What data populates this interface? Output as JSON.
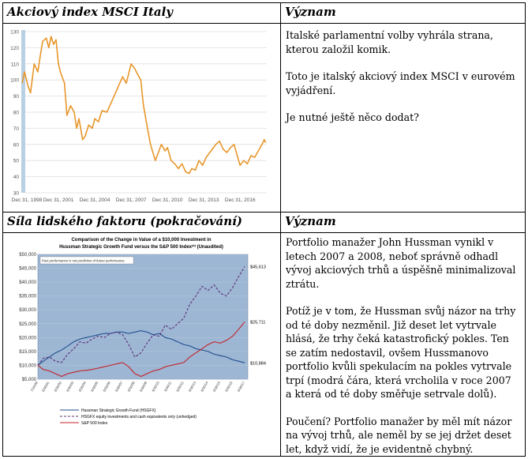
{
  "table": {
    "row1": {
      "left_header": "Akciový index MSCI Italy",
      "right_header": "Význam",
      "paragraphs": [
        "Italské parlamentní volby vyhrála strana, kterou založil komik.",
        "Toto je italský akciový index MSCI v eurovém vyjádření.",
        "Je nutné ještě něco dodat?"
      ]
    },
    "row2": {
      "left_header": "Síla lidského faktoru (pokračování)",
      "right_header": "Význam",
      "paragraphs": [
        "Portfolio manažer John Hussman vynikl v letech 2007 a 2008, neboť správně odhadl vývoj akciových trhů a úspěšně minimalizoval ztrátu.",
        "Potíž je v tom, že Hussman svůj názor na trhy od té doby nezměnil. Již deset let vytrvale hlásá, že trhy čeká katastrofický pokles. Ten se zatím nedostavil, ovšem Hussmanovo portfolio kvůli spekulacím na pokles vytrvale trpí (modrá čára, která vrcholila v roce 2007 a která od té doby směřuje setrvale dolů).",
        "Poučení? Portfolio manažer by měl mít názor na vývoj trhů, ale neměl by se jej držet deset let, když vidí, že je evidentně chybný."
      ]
    }
  },
  "chart_data": [
    {
      "type": "line",
      "title": "",
      "xlabel": "",
      "ylabel": "",
      "ylim": [
        30,
        130
      ],
      "yticks": [
        "130",
        "120",
        "110",
        "100",
        "90",
        "80",
        "70",
        "60",
        "50",
        "40",
        "30"
      ],
      "xticks": [
        "Dec 31, 1998",
        "Dec 31, 2001",
        "Dec 31, 2004",
        "Dec 31, 2007",
        "Dec 31, 2010",
        "Dec 31, 2013",
        "Dec 31, 2016"
      ],
      "x_range": [
        1998.0,
        2018.2
      ],
      "grid": "horizontal",
      "line_color": "#e8962a",
      "series": [
        {
          "x": [
            1998.0,
            1998.2,
            1998.5,
            1998.7,
            1999.0,
            1999.3,
            1999.5,
            1999.7,
            2000.0,
            2000.2,
            2000.4,
            2000.6,
            2000.8,
            2001.0,
            2001.2,
            2001.5,
            2001.7,
            2002.0,
            2002.3,
            2002.5,
            2002.7,
            2003.0,
            2003.2,
            2003.5,
            2003.8,
            2004.0,
            2004.3,
            2004.6,
            2005.0,
            2005.3,
            2005.6,
            2006.0,
            2006.3,
            2006.6,
            2007.0,
            2007.3,
            2007.5,
            2007.8,
            2008.0,
            2008.3,
            2008.6,
            2008.8,
            2009.0,
            2009.2,
            2009.5,
            2009.8,
            2010.0,
            2010.3,
            2010.6,
            2010.9,
            2011.2,
            2011.5,
            2011.8,
            2012.0,
            2012.3,
            2012.6,
            2012.9,
            2013.2,
            2013.5,
            2013.8,
            2014.0,
            2014.3,
            2014.6,
            2014.9,
            2015.2,
            2015.5,
            2015.8,
            2016.0,
            2016.3,
            2016.6,
            2016.9,
            2017.2,
            2017.5,
            2017.8,
            2018.0,
            2018.1
          ],
          "y": [
            98,
            105,
            96,
            92,
            110,
            105,
            115,
            124,
            126,
            120,
            127,
            122,
            125,
            110,
            104,
            98,
            78,
            84,
            80,
            70,
            76,
            63,
            65,
            72,
            70,
            76,
            74,
            81,
            80,
            85,
            90,
            97,
            102,
            98,
            110,
            107,
            104,
            100,
            85,
            72,
            60,
            55,
            50,
            54,
            60,
            56,
            58,
            50,
            48,
            45,
            48,
            43,
            42,
            45,
            44,
            50,
            47,
            52,
            55,
            58,
            60,
            62,
            57,
            55,
            58,
            60,
            52,
            47,
            50,
            48,
            53,
            52,
            56,
            60,
            63,
            61
          ]
        }
      ]
    },
    {
      "type": "line",
      "title": "Comparison of the Change in Value of a $10,000 Investment in Hussman Strategic Growth Fund versus the S&P 500 Index",
      "title_line1": "Comparison of the Change in Value of a $10,000 Investment in",
      "title_line2": "Hussman Strategic Growth Fund versus the S&P 500 Index",
      "title_sup": "(a)",
      "title_suffix": " (Unaudited)",
      "note": "Past performance is not predictive of future performance.",
      "ylim": [
        5000,
        50000
      ],
      "yticks": [
        "$50,000",
        "$45,000",
        "$40,000",
        "$35,000",
        "$30,000",
        "$25,000",
        "$20,000",
        "$15,000",
        "$10,000",
        "$5,000"
      ],
      "xticks": [
        "7/24/00",
        "6/30/01",
        "6/30/02",
        "6/30/03",
        "6/30/04",
        "6/30/05",
        "6/30/06",
        "6/30/07",
        "6/30/08",
        "6/30/09",
        "6/30/10",
        "6/30/11",
        "6/30/12",
        "6/30/13",
        "6/30/14",
        "6/30/15",
        "6/30/16",
        "6/30/17"
      ],
      "x_range": [
        2000.56,
        2017.75
      ],
      "plot_bg": "#9db6d3",
      "end_labels": [
        "$45,613",
        "$25,711",
        "$10,884"
      ],
      "legend": [
        {
          "label": "Hussman Strategic Growth Fund (HSGFX)",
          "color": "#1f4e8f",
          "style": "solid"
        },
        {
          "label": "HSGFX equity investments and cash equivalents only (unhedged)",
          "color": "#5c2f7a",
          "style": "dashed"
        },
        {
          "label": "S&P 500 Index",
          "color": "#c42228",
          "style": "solid"
        }
      ],
      "series": [
        {
          "name": "Hussman Strategic Growth Fund (HSGFX)",
          "color": "#1f4e8f",
          "x": [
            2000.56,
            2001.0,
            2001.5,
            2002.0,
            2002.5,
            2003.0,
            2003.5,
            2004.0,
            2004.5,
            2005.0,
            2005.5,
            2006.0,
            2006.5,
            2007.0,
            2007.5,
            2008.0,
            2008.5,
            2009.0,
            2009.5,
            2010.0,
            2010.5,
            2011.0,
            2011.5,
            2012.0,
            2012.5,
            2013.0,
            2013.5,
            2014.0,
            2014.5,
            2015.0,
            2015.5,
            2016.0,
            2016.5,
            2017.0,
            2017.5
          ],
          "y": [
            10000,
            11500,
            13000,
            14500,
            15500,
            17000,
            18500,
            19500,
            20000,
            20500,
            21000,
            21500,
            21500,
            22000,
            22000,
            21500,
            22000,
            22500,
            22000,
            21000,
            21500,
            20000,
            19500,
            18500,
            17500,
            17000,
            16000,
            15500,
            15000,
            14000,
            13500,
            13000,
            12000,
            11500,
            10884
          ]
        },
        {
          "name": "HSGFX equity investments and cash equivalents only (unhedged)",
          "color": "#5c2f7a",
          "x": [
            2000.56,
            2001.0,
            2001.5,
            2002.0,
            2002.5,
            2003.0,
            2003.5,
            2004.0,
            2004.5,
            2005.0,
            2005.5,
            2006.0,
            2006.5,
            2007.0,
            2007.5,
            2008.0,
            2008.5,
            2009.0,
            2009.5,
            2010.0,
            2010.5,
            2011.0,
            2011.5,
            2012.0,
            2012.5,
            2013.0,
            2013.5,
            2014.0,
            2014.5,
            2015.0,
            2015.5,
            2016.0,
            2016.5,
            2017.0,
            2017.5
          ],
          "y": [
            10000,
            12500,
            13000,
            11500,
            11000,
            14000,
            16000,
            18500,
            18000,
            19500,
            20500,
            20000,
            21500,
            22000,
            21000,
            17500,
            13000,
            14500,
            18000,
            21000,
            20500,
            24500,
            23000,
            25000,
            27000,
            32000,
            35000,
            38500,
            37000,
            39000,
            36000,
            35000,
            38000,
            42000,
            45613
          ]
        },
        {
          "name": "S&P 500 Index",
          "color": "#c42228",
          "x": [
            2000.56,
            2001.0,
            2001.5,
            2002.0,
            2002.5,
            2003.0,
            2003.5,
            2004.0,
            2004.5,
            2005.0,
            2005.5,
            2006.0,
            2006.5,
            2007.0,
            2007.5,
            2008.0,
            2008.5,
            2009.0,
            2009.5,
            2010.0,
            2010.5,
            2011.0,
            2011.5,
            2012.0,
            2012.5,
            2013.0,
            2013.5,
            2014.0,
            2014.5,
            2015.0,
            2015.5,
            2016.0,
            2016.5,
            2017.0,
            2017.5
          ],
          "y": [
            10000,
            8500,
            8000,
            7000,
            6000,
            7000,
            7500,
            8000,
            8200,
            8500,
            9000,
            9500,
            10000,
            10500,
            11000,
            9500,
            7000,
            6000,
            7000,
            8000,
            8500,
            9500,
            10000,
            10500,
            11000,
            13000,
            14500,
            16000,
            17500,
            18500,
            18000,
            19000,
            20500,
            23000,
            25711
          ]
        }
      ]
    }
  ]
}
